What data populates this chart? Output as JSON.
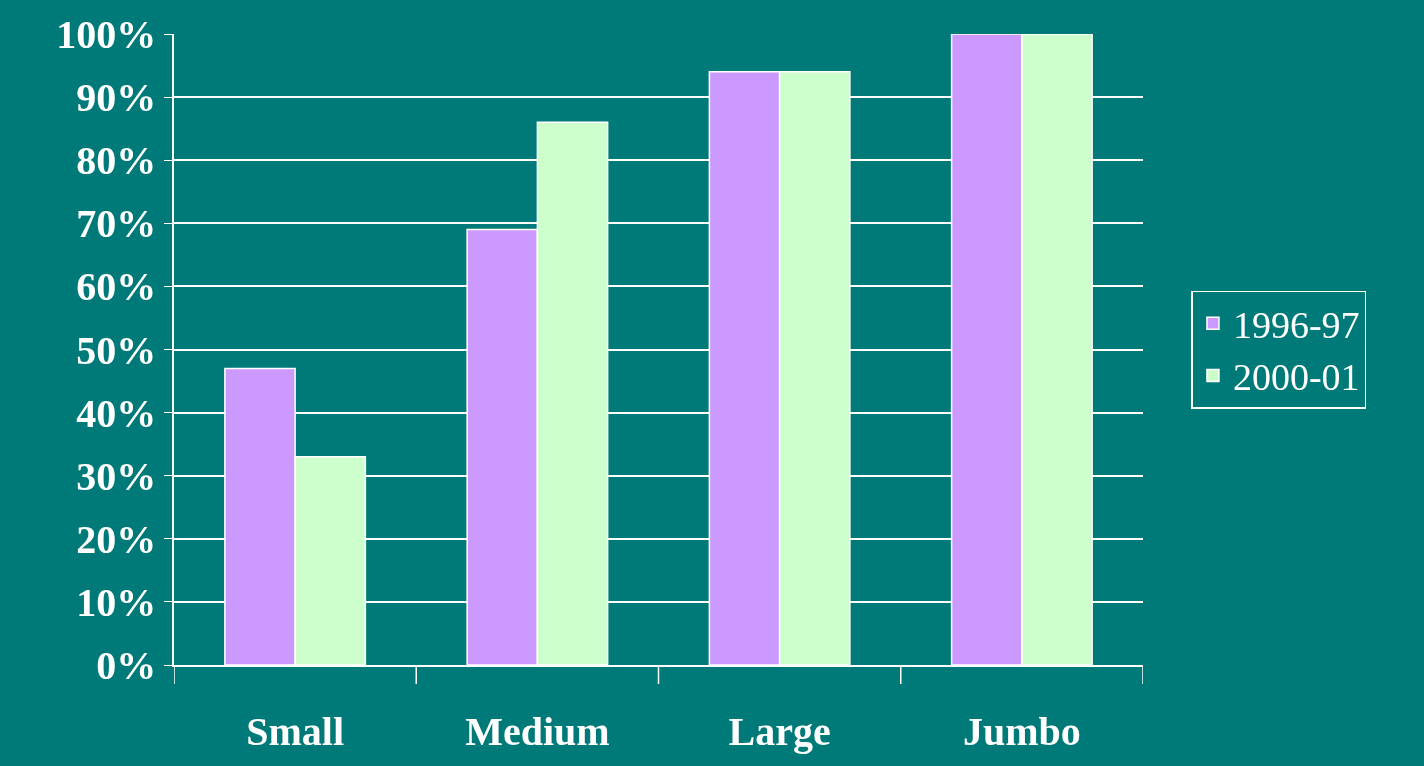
{
  "chart_data": {
    "type": "bar",
    "categories": [
      "Small",
      "Medium",
      "Large",
      "Jumbo"
    ],
    "series": [
      {
        "name": "1996-97",
        "color": "#cc99ff",
        "values": [
          47,
          69,
          94,
          100
        ]
      },
      {
        "name": "2000-01",
        "color": "#ccffcc",
        "values": [
          33,
          86,
          94,
          100
        ]
      }
    ],
    "ylim": [
      0,
      100
    ],
    "yticks": [
      {
        "value": 0,
        "label": "0%"
      },
      {
        "value": 10,
        "label": "10%"
      },
      {
        "value": 20,
        "label": "20%"
      },
      {
        "value": 30,
        "label": "30%"
      },
      {
        "value": 40,
        "label": "40%"
      },
      {
        "value": 50,
        "label": "50%"
      },
      {
        "value": 60,
        "label": "60%"
      },
      {
        "value": 70,
        "label": "70%"
      },
      {
        "value": 80,
        "label": "80%"
      },
      {
        "value": 90,
        "label": "90%"
      },
      {
        "value": 100,
        "label": "100%"
      }
    ],
    "grid": "y",
    "legend": "right"
  }
}
